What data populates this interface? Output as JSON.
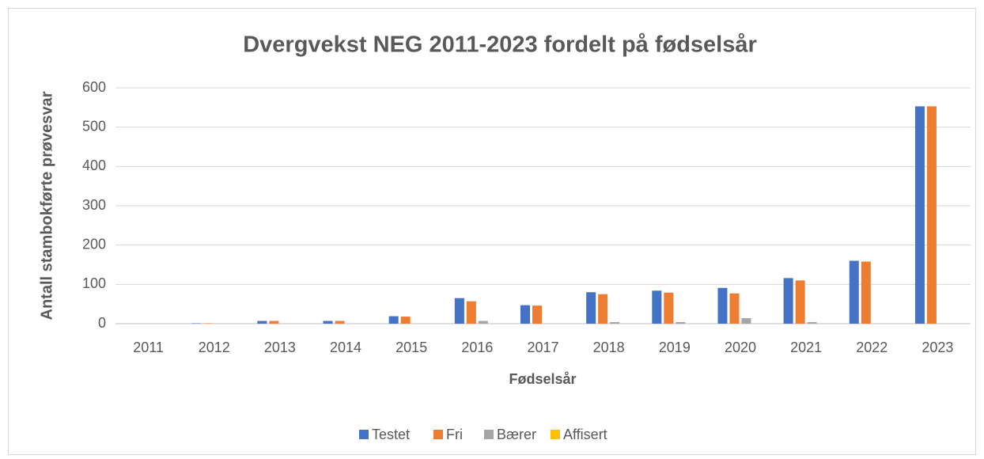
{
  "chart_data": {
    "type": "bar",
    "title": "Dvergvekst NEG 2011-2023 fordelt på fødselsår",
    "x_label": "Fødselsår",
    "y_label": "Antall stambokførte prøvesvar",
    "categories": [
      "2011",
      "2012",
      "2013",
      "2014",
      "2015",
      "2016",
      "2017",
      "2018",
      "2019",
      "2020",
      "2021",
      "2022",
      "2023"
    ],
    "series": [
      {
        "name": "Testet",
        "color": "#4472c4",
        "values": [
          0,
          1,
          7,
          7,
          19,
          65,
          47,
          80,
          84,
          91,
          116,
          160,
          553
        ]
      },
      {
        "name": "Fri",
        "color": "#ed7d31",
        "values": [
          0,
          1,
          7,
          7,
          18,
          57,
          46,
          75,
          79,
          77,
          110,
          158,
          553
        ]
      },
      {
        "name": "Bærer",
        "color": "#a5a5a5",
        "values": [
          0,
          0,
          0,
          0,
          0,
          7,
          0,
          4,
          4,
          14,
          4,
          0,
          0
        ]
      },
      {
        "name": "Affisert",
        "color": "#ffc000",
        "values": [
          0,
          0,
          0,
          0,
          0,
          0,
          0,
          0,
          0,
          0,
          0,
          0,
          0
        ]
      }
    ],
    "ylim": [
      0,
      600
    ],
    "yticks": [
      0,
      100,
      200,
      300,
      400,
      500,
      600
    ],
    "grid": true,
    "legend": "bottom"
  }
}
